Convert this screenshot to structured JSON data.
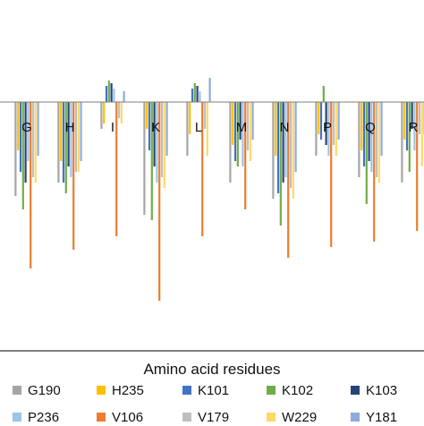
{
  "chart_data": {
    "type": "bar",
    "xlabel": "Amino acid residues",
    "categories": [
      "G",
      "H",
      "I",
      "K",
      "L",
      "M",
      "N",
      "P",
      "Q",
      "R"
    ],
    "ylim": [
      -1.0,
      0.2
    ],
    "grid": false,
    "legend_placement": "bottom",
    "series": [
      {
        "name": "G190",
        "color": "#a5a5a5",
        "values": [
          -0.35,
          -0.3,
          -0.1,
          -0.42,
          -0.2,
          -0.3,
          -0.36,
          -0.2,
          -0.28,
          -0.3
        ]
      },
      {
        "name": "H235",
        "color": "#ffc000",
        "values": [
          -0.18,
          -0.22,
          -0.08,
          -0.1,
          -0.12,
          -0.16,
          -0.2,
          -0.12,
          -0.18,
          -0.14
        ]
      },
      {
        "name": "K101",
        "color": "#4472c4",
        "values": [
          -0.26,
          -0.3,
          0.06,
          -0.18,
          0.05,
          -0.22,
          -0.34,
          -0.14,
          -0.24,
          -0.18
        ]
      },
      {
        "name": "K102",
        "color": "#70ad47",
        "values": [
          -0.4,
          -0.34,
          0.08,
          -0.44,
          0.07,
          -0.24,
          -0.46,
          0.06,
          -0.38,
          -0.26
        ]
      },
      {
        "name": "K103",
        "color": "#264478",
        "values": [
          -0.3,
          -0.24,
          0.07,
          -0.24,
          0.06,
          -0.14,
          -0.3,
          -0.16,
          -0.22,
          -0.1
        ]
      },
      {
        "name": "P236",
        "color": "#9dc3e6",
        "values": [
          -0.22,
          -0.28,
          0.05,
          -0.3,
          0.04,
          -0.24,
          -0.28,
          -0.2,
          -0.26,
          -0.18
        ]
      },
      {
        "name": "V106",
        "color": "#ed7d31",
        "values": [
          -0.62,
          -0.55,
          -0.5,
          -0.74,
          -0.5,
          -0.4,
          -0.58,
          -0.54,
          -0.52,
          -0.48
        ]
      },
      {
        "name": "V179",
        "color": "#bfbfbf",
        "values": [
          -0.28,
          -0.26,
          -0.06,
          -0.28,
          -0.1,
          -0.18,
          -0.32,
          -0.16,
          -0.28,
          -0.12
        ]
      },
      {
        "name": "W229",
        "color": "#ffd966",
        "values": [
          -0.3,
          -0.26,
          -0.08,
          -0.32,
          -0.2,
          -0.22,
          -0.36,
          -0.2,
          -0.3,
          -0.24
        ]
      },
      {
        "name": "Y181",
        "color": "#8faadc",
        "values": [
          -0.2,
          -0.22,
          0.04,
          -0.2,
          0.09,
          -0.14,
          -0.26,
          -0.14,
          -0.2,
          -0.12
        ]
      }
    ]
  },
  "legend": {
    "title": "Amino acid residues",
    "row1": [
      {
        "label": "G190",
        "color": "#a5a5a5"
      },
      {
        "label": "H235",
        "color": "#ffc000"
      },
      {
        "label": "K101",
        "color": "#4472c4"
      },
      {
        "label": "K102",
        "color": "#70ad47"
      },
      {
        "label": "K103",
        "color": "#264478"
      }
    ],
    "row2": [
      {
        "label": "P236",
        "color": "#9dc3e6"
      },
      {
        "label": "V106",
        "color": "#ed7d31"
      },
      {
        "label": "V179",
        "color": "#bfbfbf"
      },
      {
        "label": "W229",
        "color": "#ffd966"
      },
      {
        "label": "Y181",
        "color": "#8faadc"
      }
    ]
  }
}
